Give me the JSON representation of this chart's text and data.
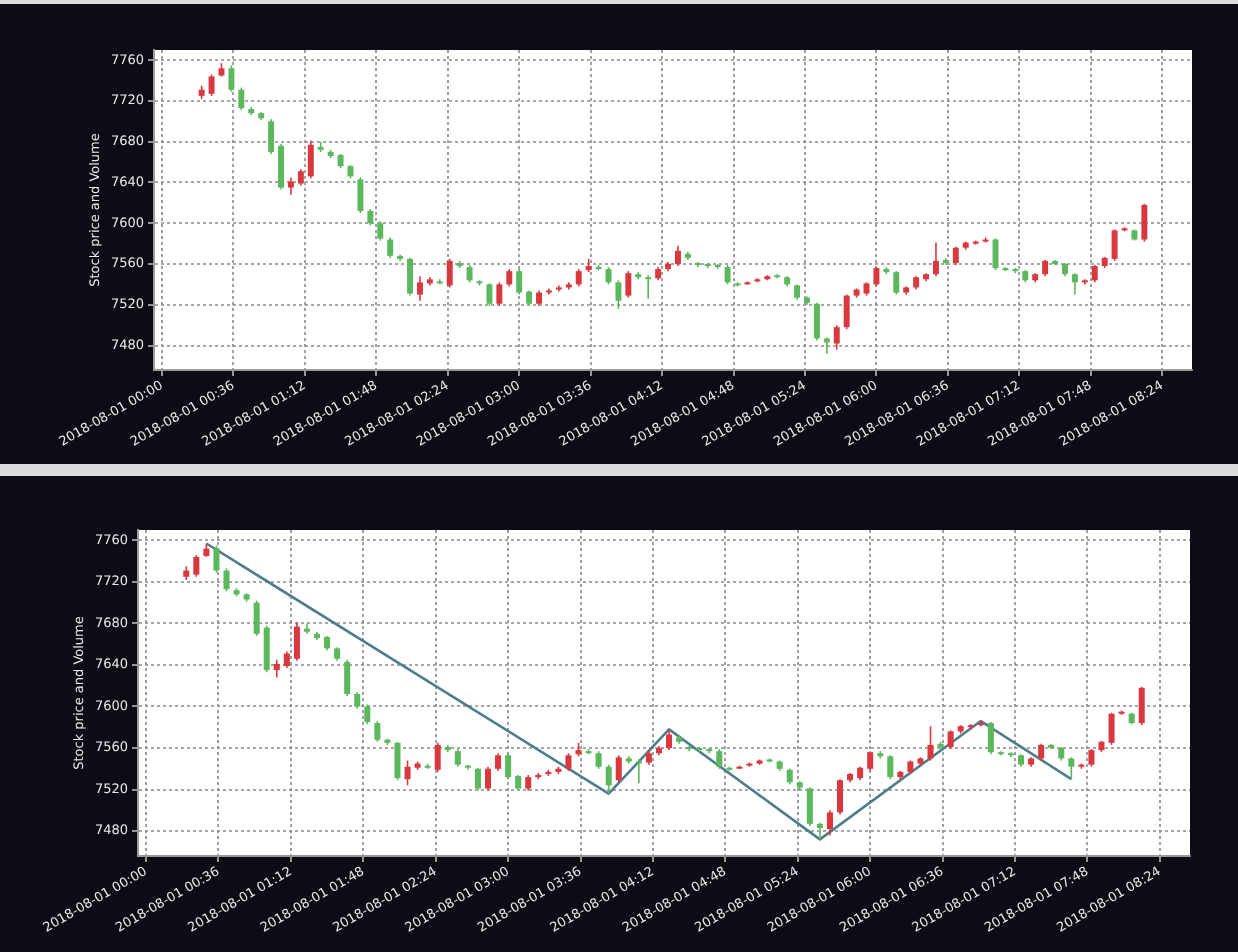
{
  "chart_data": [
    {
      "type": "candlestick",
      "ylabel": "Stock price and Volume",
      "grid": true,
      "x": [
        "2018-08-01T00:20",
        "2018-08-01T00:25",
        "2018-08-01T00:30",
        "2018-08-01T00:35",
        "2018-08-01T00:40",
        "2018-08-01T00:45",
        "2018-08-01T00:50",
        "2018-08-01T00:55",
        "2018-08-01T01:00",
        "2018-08-01T01:05",
        "2018-08-01T01:10",
        "2018-08-01T01:15",
        "2018-08-01T01:20",
        "2018-08-01T01:25",
        "2018-08-01T01:30",
        "2018-08-01T01:35",
        "2018-08-01T01:40",
        "2018-08-01T01:45",
        "2018-08-01T01:50",
        "2018-08-01T01:55",
        "2018-08-01T02:00",
        "2018-08-01T02:05",
        "2018-08-01T02:10",
        "2018-08-01T02:15",
        "2018-08-01T02:20",
        "2018-08-01T02:25",
        "2018-08-01T02:30",
        "2018-08-01T02:35",
        "2018-08-01T02:40",
        "2018-08-01T02:45",
        "2018-08-01T02:50",
        "2018-08-01T02:55",
        "2018-08-01T03:00",
        "2018-08-01T03:05",
        "2018-08-01T03:10",
        "2018-08-01T03:15",
        "2018-08-01T03:20",
        "2018-08-01T03:25",
        "2018-08-01T03:30",
        "2018-08-01T03:35",
        "2018-08-01T03:40",
        "2018-08-01T03:45",
        "2018-08-01T03:50",
        "2018-08-01T03:55",
        "2018-08-01T04:00",
        "2018-08-01T04:05",
        "2018-08-01T04:10",
        "2018-08-01T04:15",
        "2018-08-01T04:20",
        "2018-08-01T04:25",
        "2018-08-01T04:30",
        "2018-08-01T04:35",
        "2018-08-01T04:40",
        "2018-08-01T04:45",
        "2018-08-01T04:50",
        "2018-08-01T04:55",
        "2018-08-01T05:00",
        "2018-08-01T05:05",
        "2018-08-01T05:10",
        "2018-08-01T05:15",
        "2018-08-01T05:20",
        "2018-08-01T05:25",
        "2018-08-01T05:30",
        "2018-08-01T05:35",
        "2018-08-01T05:40",
        "2018-08-01T05:45",
        "2018-08-01T05:50",
        "2018-08-01T05:55",
        "2018-08-01T06:00",
        "2018-08-01T06:05",
        "2018-08-01T06:10",
        "2018-08-01T06:15",
        "2018-08-01T06:20",
        "2018-08-01T06:25",
        "2018-08-01T06:30",
        "2018-08-01T06:35",
        "2018-08-01T06:40",
        "2018-08-01T06:45",
        "2018-08-01T06:50",
        "2018-08-01T06:55",
        "2018-08-01T07:00",
        "2018-08-01T07:05",
        "2018-08-01T07:10",
        "2018-08-01T07:15",
        "2018-08-01T07:20",
        "2018-08-01T07:25",
        "2018-08-01T07:30",
        "2018-08-01T07:35",
        "2018-08-01T07:40",
        "2018-08-01T07:45",
        "2018-08-01T07:50",
        "2018-08-01T07:55",
        "2018-08-01T08:00",
        "2018-08-01T08:05",
        "2018-08-01T08:10",
        "2018-08-01T08:15"
      ],
      "ohlc": [
        [
          7725,
          7735,
          7722,
          7731
        ],
        [
          7727,
          7746,
          7725,
          7744
        ],
        [
          7745,
          7757,
          7744,
          7752
        ],
        [
          7752,
          7755,
          7729,
          7731
        ],
        [
          7731,
          7733,
          7711,
          7713
        ],
        [
          7712,
          7714,
          7706,
          7708
        ],
        [
          7708,
          7709,
          7701,
          7703
        ],
        [
          7700,
          7702,
          7668,
          7670
        ],
        [
          7676,
          7678,
          7633,
          7635
        ],
        [
          7635,
          7645,
          7628,
          7641
        ],
        [
          7639,
          7653,
          7637,
          7651
        ],
        [
          7646,
          7681,
          7644,
          7677
        ],
        [
          7675,
          7680,
          7670,
          7672
        ],
        [
          7670,
          7672,
          7664,
          7666
        ],
        [
          7667,
          7668,
          7654,
          7656
        ],
        [
          7656,
          7657,
          7644,
          7646
        ],
        [
          7643,
          7645,
          7610,
          7612
        ],
        [
          7612,
          7614,
          7598,
          7600
        ],
        [
          7600,
          7602,
          7583,
          7585
        ],
        [
          7584,
          7586,
          7566,
          7568
        ],
        [
          7568,
          7569,
          7563,
          7565
        ],
        [
          7565,
          7566,
          7529,
          7531
        ],
        [
          7530,
          7548,
          7524,
          7542
        ],
        [
          7541,
          7547,
          7539,
          7545
        ],
        [
          7543,
          7545,
          7540,
          7541
        ],
        [
          7539,
          7565,
          7537,
          7563
        ],
        [
          7561,
          7563,
          7556,
          7558
        ],
        [
          7557,
          7559,
          7542,
          7544
        ],
        [
          7543,
          7544,
          7539,
          7541
        ],
        [
          7540,
          7541,
          7519,
          7521
        ],
        [
          7521,
          7542,
          7519,
          7540
        ],
        [
          7540,
          7555,
          7538,
          7553
        ],
        [
          7553,
          7555,
          7530,
          7532
        ],
        [
          7533,
          7534,
          7519,
          7521
        ],
        [
          7521,
          7534,
          7519,
          7532
        ],
        [
          7532,
          7536,
          7530,
          7534
        ],
        [
          7535,
          7539,
          7533,
          7537
        ],
        [
          7537,
          7542,
          7535,
          7540
        ],
        [
          7540,
          7555,
          7538,
          7553
        ],
        [
          7554,
          7565,
          7552,
          7558
        ],
        [
          7557,
          7559,
          7554,
          7556
        ],
        [
          7555,
          7557,
          7540,
          7542
        ],
        [
          7542,
          7544,
          7516,
          7524
        ],
        [
          7529,
          7553,
          7527,
          7551
        ],
        [
          7550,
          7552,
          7545,
          7547
        ],
        [
          7547,
          7549,
          7526,
          7546
        ],
        [
          7546,
          7557,
          7544,
          7555
        ],
        [
          7555,
          7562,
          7553,
          7560
        ],
        [
          7560,
          7578,
          7558,
          7573
        ],
        [
          7570,
          7572,
          7564,
          7566
        ],
        [
          7561,
          7562,
          7557,
          7559
        ],
        [
          7560,
          7561,
          7556,
          7558
        ],
        [
          7559,
          7560,
          7555,
          7557
        ],
        [
          7557,
          7559,
          7540,
          7542
        ],
        [
          7541,
          7542,
          7538,
          7540
        ],
        [
          7541,
          7543,
          7540,
          7542
        ],
        [
          7543,
          7546,
          7542,
          7545
        ],
        [
          7545,
          7549,
          7544,
          7548
        ],
        [
          7549,
          7550,
          7546,
          7548
        ],
        [
          7547,
          7548,
          7538,
          7540
        ],
        [
          7539,
          7540,
          7525,
          7527
        ],
        [
          7527,
          7528,
          7520,
          7522
        ],
        [
          7521,
          7522,
          7485,
          7487
        ],
        [
          7487,
          7488,
          7472,
          7483
        ],
        [
          7482,
          7500,
          7476,
          7498
        ],
        [
          7498,
          7530,
          7496,
          7529
        ],
        [
          7529,
          7536,
          7527,
          7535
        ],
        [
          7531,
          7542,
          7529,
          7541
        ],
        [
          7540,
          7557,
          7538,
          7556
        ],
        [
          7555,
          7557,
          7550,
          7552
        ],
        [
          7552,
          7553,
          7530,
          7532
        ],
        [
          7532,
          7538,
          7530,
          7537
        ],
        [
          7537,
          7548,
          7535,
          7547
        ],
        [
          7545,
          7551,
          7543,
          7550
        ],
        [
          7550,
          7581,
          7548,
          7563
        ],
        [
          7564,
          7566,
          7559,
          7561
        ],
        [
          7561,
          7577,
          7559,
          7576
        ],
        [
          7576,
          7582,
          7574,
          7581
        ],
        [
          7580,
          7583,
          7579,
          7582
        ],
        [
          7582,
          7586,
          7581,
          7584
        ],
        [
          7584,
          7585,
          7554,
          7556
        ],
        [
          7556,
          7557,
          7553,
          7555
        ],
        [
          7555,
          7556,
          7551,
          7553
        ],
        [
          7553,
          7554,
          7542,
          7544
        ],
        [
          7544,
          7551,
          7542,
          7550
        ],
        [
          7550,
          7564,
          7548,
          7563
        ],
        [
          7563,
          7564,
          7559,
          7560
        ],
        [
          7560,
          7561,
          7548,
          7550
        ],
        [
          7550,
          7551,
          7530,
          7542
        ],
        [
          7542,
          7545,
          7540,
          7544
        ],
        [
          7544,
          7559,
          7542,
          7558
        ],
        [
          7558,
          7567,
          7556,
          7566
        ],
        [
          7565,
          7594,
          7563,
          7593
        ],
        [
          7593,
          7596,
          7592,
          7595
        ],
        [
          7593,
          7594,
          7583,
          7584
        ],
        [
          7584,
          7619,
          7582,
          7618
        ]
      ],
      "colors": [
        "#d9383f",
        "#d9383f",
        "#d9383f",
        "#5cb85c",
        "#5cb85c",
        "#5cb85c",
        "#5cb85c",
        "#5cb85c",
        "#5cb85c",
        "#d9383f",
        "#d9383f",
        "#d9383f",
        "#5cb85c",
        "#5cb85c",
        "#5cb85c",
        "#5cb85c",
        "#5cb85c",
        "#5cb85c",
        "#5cb85c",
        "#5cb85c",
        "#5cb85c",
        "#5cb85c",
        "#d9383f",
        "#d9383f",
        "#5cb85c",
        "#d9383f",
        "#5cb85c",
        "#5cb85c",
        "#5cb85c",
        "#5cb85c",
        "#d9383f",
        "#d9383f",
        "#5cb85c",
        "#5cb85c",
        "#d9383f",
        "#d9383f",
        "#d9383f",
        "#d9383f",
        "#d9383f",
        "#d9383f",
        "#5cb85c",
        "#5cb85c",
        "#5cb85c",
        "#d9383f",
        "#5cb85c",
        "#5cb85c",
        "#d9383f",
        "#d9383f",
        "#d9383f",
        "#5cb85c",
        "#5cb85c",
        "#5cb85c",
        "#5cb85c",
        "#5cb85c",
        "#5cb85c",
        "#d9383f",
        "#d9383f",
        "#d9383f",
        "#5cb85c",
        "#5cb85c",
        "#5cb85c",
        "#5cb85c",
        "#5cb85c",
        "#5cb85c",
        "#d9383f",
        "#d9383f",
        "#d9383f",
        "#d9383f",
        "#d9383f",
        "#5cb85c",
        "#5cb85c",
        "#d9383f",
        "#d9383f",
        "#d9383f",
        "#d9383f",
        "#5cb85c",
        "#d9383f",
        "#d9383f",
        "#d9383f",
        "#d9383f",
        "#5cb85c",
        "#5cb85c",
        "#5cb85c",
        "#5cb85c",
        "#d9383f",
        "#d9383f",
        "#5cb85c",
        "#5cb85c",
        "#5cb85c",
        "#d9383f",
        "#d9383f",
        "#d9383f",
        "#d9383f",
        "#d9383f",
        "#5cb85c",
        "#d9383f"
      ],
      "xlim": [
        "2018-07-31T23:56",
        "2018-08-01T08:39"
      ],
      "xticks": [
        {
          "value": "2018-08-01T00:00",
          "label": "2018-08-01 00:00"
        },
        {
          "value": "2018-08-01T00:36",
          "label": "2018-08-01 00:36"
        },
        {
          "value": "2018-08-01T01:12",
          "label": "2018-08-01 01:12"
        },
        {
          "value": "2018-08-01T01:48",
          "label": "2018-08-01 01:48"
        },
        {
          "value": "2018-08-01T02:24",
          "label": "2018-08-01 02:24"
        },
        {
          "value": "2018-08-01T03:00",
          "label": "2018-08-01 03:00"
        },
        {
          "value": "2018-08-01T03:36",
          "label": "2018-08-01 03:36"
        },
        {
          "value": "2018-08-01T04:12",
          "label": "2018-08-01 04:12"
        },
        {
          "value": "2018-08-01T04:48",
          "label": "2018-08-01 04:48"
        },
        {
          "value": "2018-08-01T05:24",
          "label": "2018-08-01 05:24"
        },
        {
          "value": "2018-08-01T06:00",
          "label": "2018-08-01 06:00"
        },
        {
          "value": "2018-08-01T06:36",
          "label": "2018-08-01 06:36"
        },
        {
          "value": "2018-08-01T07:12",
          "label": "2018-08-01 07:12"
        },
        {
          "value": "2018-08-01T07:48",
          "label": "2018-08-01 07:48"
        },
        {
          "value": "2018-08-01T08:24",
          "label": "2018-08-01 08:24"
        }
      ],
      "ylim": [
        7456,
        7770
      ],
      "yticks": [
        7480,
        7520,
        7560,
        7600,
        7640,
        7680,
        7720,
        7760
      ]
    },
    {
      "type": "candlestick",
      "ylabel": "Stock price and Volume",
      "grid": true,
      "x": [
        "2018-08-01T00:20",
        "2018-08-01T00:25",
        "2018-08-01T00:30",
        "2018-08-01T00:35",
        "2018-08-01T00:40",
        "2018-08-01T00:45",
        "2018-08-01T00:50",
        "2018-08-01T00:55",
        "2018-08-01T01:00",
        "2018-08-01T01:05",
        "2018-08-01T01:10",
        "2018-08-01T01:15",
        "2018-08-01T01:20",
        "2018-08-01T01:25",
        "2018-08-01T01:30",
        "2018-08-01T01:35",
        "2018-08-01T01:40",
        "2018-08-01T01:45",
        "2018-08-01T01:50",
        "2018-08-01T01:55",
        "2018-08-01T02:00",
        "2018-08-01T02:05",
        "2018-08-01T02:10",
        "2018-08-01T02:15",
        "2018-08-01T02:20",
        "2018-08-01T02:25",
        "2018-08-01T02:30",
        "2018-08-01T02:35",
        "2018-08-01T02:40",
        "2018-08-01T02:45",
        "2018-08-01T02:50",
        "2018-08-01T02:55",
        "2018-08-01T03:00",
        "2018-08-01T03:05",
        "2018-08-01T03:10",
        "2018-08-01T03:15",
        "2018-08-01T03:20",
        "2018-08-01T03:25",
        "2018-08-01T03:30",
        "2018-08-01T03:35",
        "2018-08-01T03:40",
        "2018-08-01T03:45",
        "2018-08-01T03:50",
        "2018-08-01T03:55",
        "2018-08-01T04:00",
        "2018-08-01T04:05",
        "2018-08-01T04:10",
        "2018-08-01T04:15",
        "2018-08-01T04:20",
        "2018-08-01T04:25",
        "2018-08-01T04:30",
        "2018-08-01T04:35",
        "2018-08-01T04:40",
        "2018-08-01T04:45",
        "2018-08-01T04:50",
        "2018-08-01T04:55",
        "2018-08-01T05:00",
        "2018-08-01T05:05",
        "2018-08-01T05:10",
        "2018-08-01T05:15",
        "2018-08-01T05:20",
        "2018-08-01T05:25",
        "2018-08-01T05:30",
        "2018-08-01T05:35",
        "2018-08-01T05:40",
        "2018-08-01T05:45",
        "2018-08-01T05:50",
        "2018-08-01T05:55",
        "2018-08-01T06:00",
        "2018-08-01T06:05",
        "2018-08-01T06:10",
        "2018-08-01T06:15",
        "2018-08-01T06:20",
        "2018-08-01T06:25",
        "2018-08-01T06:30",
        "2018-08-01T06:35",
        "2018-08-01T06:40",
        "2018-08-01T06:45",
        "2018-08-01T06:50",
        "2018-08-01T06:55",
        "2018-08-01T07:00",
        "2018-08-01T07:05",
        "2018-08-01T07:10",
        "2018-08-01T07:15",
        "2018-08-01T07:20",
        "2018-08-01T07:25",
        "2018-08-01T07:30",
        "2018-08-01T07:35",
        "2018-08-01T07:40",
        "2018-08-01T07:45",
        "2018-08-01T07:50",
        "2018-08-01T07:55",
        "2018-08-01T08:00",
        "2018-08-01T08:05",
        "2018-08-01T08:10",
        "2018-08-01T08:15"
      ],
      "ohlc": [
        [
          7725,
          7735,
          7722,
          7731
        ],
        [
          7727,
          7746,
          7725,
          7744
        ],
        [
          7745,
          7757,
          7744,
          7752
        ],
        [
          7752,
          7755,
          7729,
          7731
        ],
        [
          7731,
          7733,
          7711,
          7713
        ],
        [
          7712,
          7714,
          7706,
          7708
        ],
        [
          7708,
          7709,
          7701,
          7703
        ],
        [
          7700,
          7702,
          7668,
          7670
        ],
        [
          7676,
          7678,
          7633,
          7635
        ],
        [
          7635,
          7645,
          7628,
          7641
        ],
        [
          7639,
          7653,
          7637,
          7651
        ],
        [
          7646,
          7681,
          7644,
          7677
        ],
        [
          7675,
          7680,
          7670,
          7672
        ],
        [
          7670,
          7672,
          7664,
          7666
        ],
        [
          7667,
          7668,
          7654,
          7656
        ],
        [
          7656,
          7657,
          7644,
          7646
        ],
        [
          7643,
          7645,
          7610,
          7612
        ],
        [
          7612,
          7614,
          7598,
          7600
        ],
        [
          7600,
          7602,
          7583,
          7585
        ],
        [
          7584,
          7586,
          7566,
          7568
        ],
        [
          7568,
          7569,
          7563,
          7565
        ],
        [
          7565,
          7566,
          7529,
          7531
        ],
        [
          7530,
          7548,
          7524,
          7542
        ],
        [
          7541,
          7547,
          7539,
          7545
        ],
        [
          7543,
          7545,
          7540,
          7541
        ],
        [
          7539,
          7565,
          7537,
          7563
        ],
        [
          7561,
          7563,
          7556,
          7558
        ],
        [
          7557,
          7559,
          7542,
          7544
        ],
        [
          7543,
          7544,
          7539,
          7541
        ],
        [
          7540,
          7541,
          7519,
          7521
        ],
        [
          7521,
          7542,
          7519,
          7540
        ],
        [
          7540,
          7555,
          7538,
          7553
        ],
        [
          7553,
          7555,
          7530,
          7532
        ],
        [
          7533,
          7534,
          7519,
          7521
        ],
        [
          7521,
          7534,
          7519,
          7532
        ],
        [
          7532,
          7536,
          7530,
          7534
        ],
        [
          7535,
          7539,
          7533,
          7537
        ],
        [
          7537,
          7542,
          7535,
          7540
        ],
        [
          7540,
          7555,
          7538,
          7553
        ],
        [
          7554,
          7565,
          7552,
          7558
        ],
        [
          7557,
          7559,
          7554,
          7556
        ],
        [
          7555,
          7557,
          7540,
          7542
        ],
        [
          7542,
          7544,
          7516,
          7524
        ],
        [
          7529,
          7553,
          7527,
          7551
        ],
        [
          7550,
          7552,
          7545,
          7547
        ],
        [
          7547,
          7549,
          7526,
          7546
        ],
        [
          7546,
          7557,
          7544,
          7555
        ],
        [
          7555,
          7562,
          7553,
          7560
        ],
        [
          7560,
          7578,
          7558,
          7573
        ],
        [
          7570,
          7572,
          7564,
          7566
        ],
        [
          7561,
          7562,
          7557,
          7559
        ],
        [
          7560,
          7561,
          7556,
          7558
        ],
        [
          7559,
          7560,
          7555,
          7557
        ],
        [
          7557,
          7559,
          7540,
          7542
        ],
        [
          7541,
          7542,
          7538,
          7540
        ],
        [
          7541,
          7543,
          7540,
          7542
        ],
        [
          7543,
          7546,
          7542,
          7545
        ],
        [
          7545,
          7549,
          7544,
          7548
        ],
        [
          7549,
          7550,
          7546,
          7548
        ],
        [
          7547,
          7548,
          7538,
          7540
        ],
        [
          7539,
          7540,
          7525,
          7527
        ],
        [
          7527,
          7528,
          7520,
          7522
        ],
        [
          7521,
          7522,
          7485,
          7487
        ],
        [
          7487,
          7488,
          7472,
          7483
        ],
        [
          7482,
          7500,
          7476,
          7498
        ],
        [
          7498,
          7530,
          7496,
          7529
        ],
        [
          7529,
          7536,
          7527,
          7535
        ],
        [
          7531,
          7542,
          7529,
          7541
        ],
        [
          7540,
          7557,
          7538,
          7556
        ],
        [
          7555,
          7557,
          7550,
          7552
        ],
        [
          7552,
          7553,
          7530,
          7532
        ],
        [
          7532,
          7538,
          7530,
          7537
        ],
        [
          7537,
          7548,
          7535,
          7547
        ],
        [
          7545,
          7551,
          7543,
          7550
        ],
        [
          7550,
          7581,
          7548,
          7563
        ],
        [
          7564,
          7566,
          7559,
          7561
        ],
        [
          7561,
          7577,
          7559,
          7576
        ],
        [
          7576,
          7582,
          7574,
          7581
        ],
        [
          7580,
          7583,
          7579,
          7582
        ],
        [
          7582,
          7586,
          7581,
          7584
        ],
        [
          7584,
          7585,
          7554,
          7556
        ],
        [
          7556,
          7557,
          7553,
          7555
        ],
        [
          7555,
          7556,
          7551,
          7553
        ],
        [
          7553,
          7554,
          7542,
          7544
        ],
        [
          7544,
          7551,
          7542,
          7550
        ],
        [
          7550,
          7564,
          7548,
          7563
        ],
        [
          7563,
          7564,
          7559,
          7560
        ],
        [
          7560,
          7561,
          7548,
          7550
        ],
        [
          7550,
          7551,
          7530,
          7542
        ],
        [
          7542,
          7545,
          7540,
          7544
        ],
        [
          7544,
          7559,
          7542,
          7558
        ],
        [
          7558,
          7567,
          7556,
          7566
        ],
        [
          7565,
          7594,
          7563,
          7593
        ],
        [
          7593,
          7596,
          7592,
          7595
        ],
        [
          7593,
          7594,
          7583,
          7584
        ],
        [
          7584,
          7619,
          7582,
          7618
        ]
      ],
      "colors": [
        "#d9383f",
        "#d9383f",
        "#d9383f",
        "#5cb85c",
        "#5cb85c",
        "#5cb85c",
        "#5cb85c",
        "#5cb85c",
        "#5cb85c",
        "#d9383f",
        "#d9383f",
        "#d9383f",
        "#5cb85c",
        "#5cb85c",
        "#5cb85c",
        "#5cb85c",
        "#5cb85c",
        "#5cb85c",
        "#5cb85c",
        "#5cb85c",
        "#5cb85c",
        "#5cb85c",
        "#d9383f",
        "#d9383f",
        "#5cb85c",
        "#d9383f",
        "#5cb85c",
        "#5cb85c",
        "#5cb85c",
        "#5cb85c",
        "#d9383f",
        "#d9383f",
        "#5cb85c",
        "#5cb85c",
        "#d9383f",
        "#d9383f",
        "#d9383f",
        "#d9383f",
        "#d9383f",
        "#d9383f",
        "#5cb85c",
        "#5cb85c",
        "#5cb85c",
        "#d9383f",
        "#5cb85c",
        "#5cb85c",
        "#d9383f",
        "#d9383f",
        "#d9383f",
        "#5cb85c",
        "#5cb85c",
        "#5cb85c",
        "#5cb85c",
        "#5cb85c",
        "#5cb85c",
        "#d9383f",
        "#d9383f",
        "#d9383f",
        "#5cb85c",
        "#5cb85c",
        "#5cb85c",
        "#5cb85c",
        "#5cb85c",
        "#5cb85c",
        "#d9383f",
        "#d9383f",
        "#d9383f",
        "#d9383f",
        "#d9383f",
        "#5cb85c",
        "#5cb85c",
        "#d9383f",
        "#d9383f",
        "#d9383f",
        "#d9383f",
        "#5cb85c",
        "#d9383f",
        "#d9383f",
        "#d9383f",
        "#d9383f",
        "#5cb85c",
        "#5cb85c",
        "#5cb85c",
        "#5cb85c",
        "#d9383f",
        "#d9383f",
        "#5cb85c",
        "#5cb85c",
        "#5cb85c",
        "#d9383f",
        "#d9383f",
        "#d9383f",
        "#d9383f",
        "#d9383f",
        "#5cb85c",
        "#d9383f"
      ],
      "series": [
        {
          "type": "line",
          "x": [
            "2018-08-01T00:30",
            "2018-08-01T03:50",
            "2018-08-01T04:20",
            "2018-08-01T05:35",
            "2018-08-01T06:55",
            "2018-08-01T07:40"
          ],
          "values": [
            7757,
            7516,
            7578,
            7472,
            7586,
            7530
          ],
          "color": "#4e7d8e",
          "marker": "none"
        }
      ],
      "xlim": [
        "2018-07-31T23:56",
        "2018-08-01T08:39"
      ],
      "xticks": [
        {
          "value": "2018-08-01T00:00",
          "label": "2018-08-01 00:00"
        },
        {
          "value": "2018-08-01T00:36",
          "label": "2018-08-01 00:36"
        },
        {
          "value": "2018-08-01T01:12",
          "label": "2018-08-01 01:12"
        },
        {
          "value": "2018-08-01T01:48",
          "label": "2018-08-01 01:48"
        },
        {
          "value": "2018-08-01T02:24",
          "label": "2018-08-01 02:24"
        },
        {
          "value": "2018-08-01T03:00",
          "label": "2018-08-01 03:00"
        },
        {
          "value": "2018-08-01T03:36",
          "label": "2018-08-01 03:36"
        },
        {
          "value": "2018-08-01T04:12",
          "label": "2018-08-01 04:12"
        },
        {
          "value": "2018-08-01T04:48",
          "label": "2018-08-01 04:48"
        },
        {
          "value": "2018-08-01T05:24",
          "label": "2018-08-01 05:24"
        },
        {
          "value": "2018-08-01T06:00",
          "label": "2018-08-01 06:00"
        },
        {
          "value": "2018-08-01T06:36",
          "label": "2018-08-01 06:36"
        },
        {
          "value": "2018-08-01T07:12",
          "label": "2018-08-01 07:12"
        },
        {
          "value": "2018-08-01T07:48",
          "label": "2018-08-01 07:48"
        },
        {
          "value": "2018-08-01T08:24",
          "label": "2018-08-01 08:24"
        }
      ],
      "ylim": [
        7456,
        7770
      ],
      "yticks": [
        7480,
        7520,
        7560,
        7600,
        7640,
        7680,
        7720,
        7760
      ]
    }
  ]
}
